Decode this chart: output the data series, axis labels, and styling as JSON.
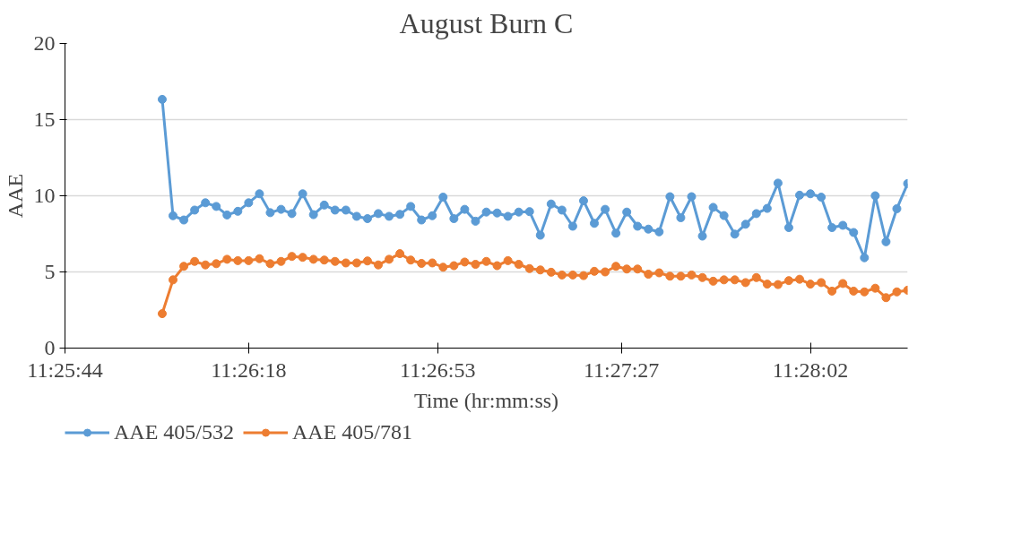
{
  "chart_data": {
    "type": "line",
    "title": "August Burn C",
    "xlabel": "Time (hr:mm:ss)",
    "ylabel": "AAE",
    "x": [
      11.433889,
      11.434444,
      11.435,
      11.435556,
      11.436111,
      11.436667,
      11.437222,
      11.437778,
      11.438333,
      11.438889,
      11.439444,
      11.44,
      11.440556,
      11.441111,
      11.441667,
      11.442222,
      11.442778,
      11.443333,
      11.443889,
      11.444444,
      11.445,
      11.445556,
      11.446111,
      11.446667,
      11.447222,
      11.447778,
      11.448333,
      11.448889,
      11.449444,
      11.45,
      11.450556,
      11.451111,
      11.451667,
      11.452222,
      11.452778,
      11.453333,
      11.453889,
      11.454444,
      11.455,
      11.455556,
      11.456111,
      11.456667,
      11.457222,
      11.457778,
      11.458333,
      11.458889,
      11.459444,
      11.46,
      11.460556,
      11.461111,
      11.461667,
      11.462222,
      11.462778,
      11.463333,
      11.463889,
      11.464444,
      11.465,
      11.465556,
      11.466111,
      11.466667,
      11.467222,
      11.467778,
      11.468333,
      11.468889,
      11.469444,
      11.47,
      11.470556,
      11.471111,
      11.471667,
      11.472222
    ],
    "series": [
      {
        "name": "AAE 405/532",
        "color": "#5b9bd5",
        "values": [
          16.33,
          8.69,
          8.41,
          9.06,
          9.54,
          9.3,
          8.74,
          8.98,
          9.54,
          10.13,
          8.89,
          9.11,
          8.83,
          10.13,
          8.76,
          9.39,
          9.06,
          9.06,
          8.65,
          8.5,
          8.83,
          8.65,
          8.78,
          9.3,
          8.41,
          8.69,
          9.91,
          8.5,
          9.11,
          8.33,
          8.93,
          8.87,
          8.65,
          8.93,
          8.96,
          7.41,
          9.46,
          9.06,
          8.0,
          9.67,
          8.19,
          9.11,
          7.54,
          8.93,
          8.0,
          7.81,
          7.63,
          9.94,
          8.56,
          9.94,
          7.35,
          9.24,
          8.7,
          7.48,
          8.13,
          8.83,
          9.17,
          10.83,
          7.91,
          10.04,
          10.13,
          9.91,
          7.91,
          8.06,
          7.59,
          5.93,
          10.0,
          6.98,
          9.15,
          10.8
        ]
      },
      {
        "name": "AAE 405/781",
        "color": "#ed7d31",
        "values": [
          2.26,
          4.48,
          5.37,
          5.69,
          5.46,
          5.54,
          5.83,
          5.74,
          5.74,
          5.87,
          5.54,
          5.69,
          6.02,
          5.96,
          5.83,
          5.78,
          5.69,
          5.59,
          5.59,
          5.72,
          5.46,
          5.83,
          6.2,
          5.78,
          5.56,
          5.59,
          5.31,
          5.41,
          5.65,
          5.5,
          5.69,
          5.41,
          5.74,
          5.5,
          5.22,
          5.13,
          4.98,
          4.8,
          4.8,
          4.76,
          5.04,
          5.0,
          5.37,
          5.19,
          5.19,
          4.85,
          4.94,
          4.72,
          4.72,
          4.8,
          4.63,
          4.39,
          4.48,
          4.48,
          4.3,
          4.63,
          4.2,
          4.17,
          4.43,
          4.52,
          4.2,
          4.3,
          3.74,
          4.24,
          3.74,
          3.69,
          3.93,
          3.31,
          3.69,
          3.8
        ]
      }
    ],
    "xlim": [
      11.428889,
      11.472222
    ],
    "xticks": [
      {
        "value": 11.428889,
        "label": "11:25:44"
      },
      {
        "value": 11.438333,
        "label": "11:26:18"
      },
      {
        "value": 11.448056,
        "label": "11:26:53"
      },
      {
        "value": 11.4575,
        "label": "11:27:27"
      },
      {
        "value": 11.467222,
        "label": "11:28:02"
      }
    ],
    "ylim": [
      0,
      20
    ],
    "yticks": [
      0,
      5,
      10,
      15,
      20
    ],
    "grid": "y",
    "legend": "bottom",
    "marker": "circle",
    "line_style": "solid"
  }
}
